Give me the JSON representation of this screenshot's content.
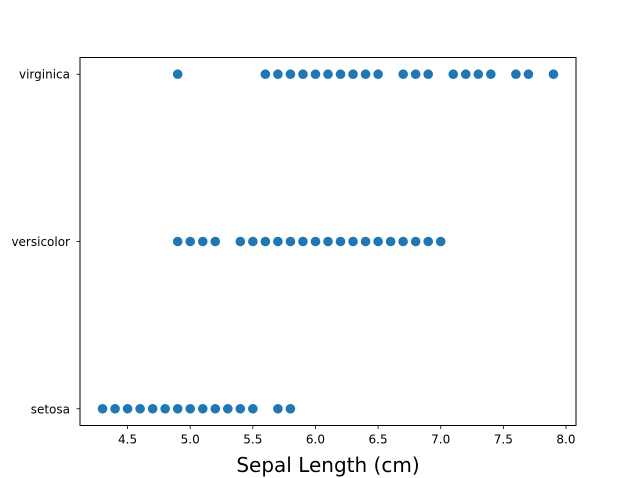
{
  "chart_data": {
    "type": "scatter",
    "title": "",
    "xlabel": "Sepal Length (cm)",
    "ylabel": "",
    "xlim": [
      4.12,
      8.08
    ],
    "categories": [
      "setosa",
      "versicolor",
      "virginica"
    ],
    "x_ticks": [
      "4.5",
      "5.0",
      "5.5",
      "6.0",
      "6.5",
      "7.0",
      "7.5",
      "8.0"
    ],
    "grid": false,
    "color": "#1f77b4",
    "series": [
      {
        "category": "setosa",
        "x": [
          4.3,
          4.4,
          4.5,
          4.6,
          4.7,
          4.8,
          4.9,
          5.0,
          5.1,
          5.2,
          5.3,
          5.4,
          5.5,
          5.7,
          5.8
        ]
      },
      {
        "category": "versicolor",
        "x": [
          4.9,
          5.0,
          5.1,
          5.2,
          5.4,
          5.5,
          5.6,
          5.7,
          5.8,
          5.9,
          6.0,
          6.1,
          6.2,
          6.3,
          6.4,
          6.5,
          6.6,
          6.7,
          6.8,
          6.9,
          7.0
        ]
      },
      {
        "category": "virginica",
        "x": [
          4.9,
          5.6,
          5.7,
          5.8,
          5.9,
          6.0,
          6.1,
          6.2,
          6.3,
          6.4,
          6.5,
          6.7,
          6.8,
          6.9,
          7.1,
          7.2,
          7.3,
          7.4,
          7.6,
          7.7,
          7.9
        ]
      }
    ]
  }
}
